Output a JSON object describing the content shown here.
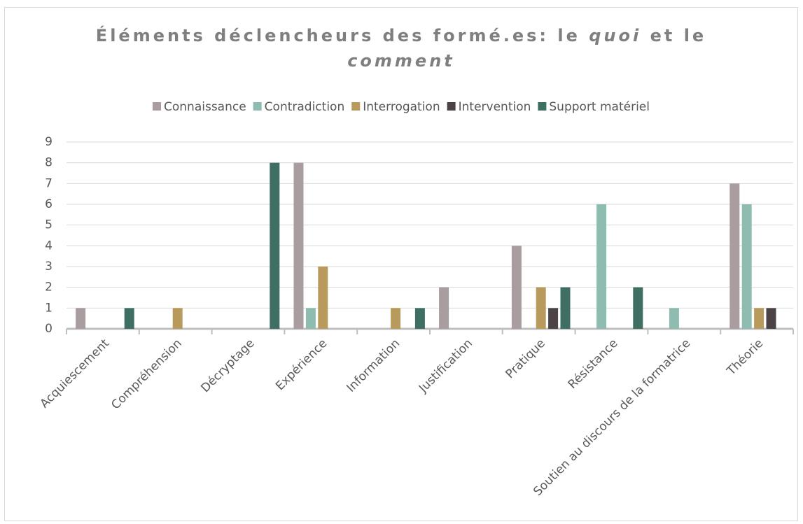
{
  "chart_data": {
    "type": "bar",
    "title": [
      [
        {
          "text": "Éléments déclencheurs des formé.es: le ",
          "italic": false
        },
        {
          "text": "quoi",
          "italic": true
        },
        {
          "text": " et le",
          "italic": false
        }
      ],
      [
        {
          "text": "comment",
          "italic": true
        }
      ]
    ],
    "categories": [
      "Acquiescement",
      "Compréhension",
      "Décryptage",
      "Expérience",
      "Information",
      "Justification",
      "Pratique",
      "Résistance",
      "Soutien au discours de la formatrice",
      "Théorie"
    ],
    "series": [
      {
        "name": "Connaissance",
        "color": "#a99d9f",
        "values": [
          1,
          0,
          0,
          8,
          0,
          2,
          4,
          0,
          0,
          7
        ]
      },
      {
        "name": "Contradiction",
        "color": "#8fbcb0",
        "values": [
          0,
          0,
          0,
          1,
          0,
          0,
          0,
          6,
          1,
          6
        ]
      },
      {
        "name": "Interrogation",
        "color": "#b89a5c",
        "values": [
          0,
          1,
          0,
          3,
          1,
          0,
          2,
          0,
          0,
          1
        ]
      },
      {
        "name": "Intervention",
        "color": "#4b4345",
        "values": [
          0,
          0,
          0,
          0,
          0,
          0,
          1,
          0,
          0,
          1
        ]
      },
      {
        "name": "Support matériel",
        "color": "#3f6f63",
        "values": [
          1,
          0,
          8,
          0,
          1,
          0,
          2,
          2,
          0,
          0
        ]
      }
    ],
    "ylim": [
      0,
      9
    ],
    "yticks": [
      0,
      1,
      2,
      3,
      4,
      5,
      6,
      7,
      8,
      9
    ],
    "grid": true,
    "legend": "top"
  }
}
